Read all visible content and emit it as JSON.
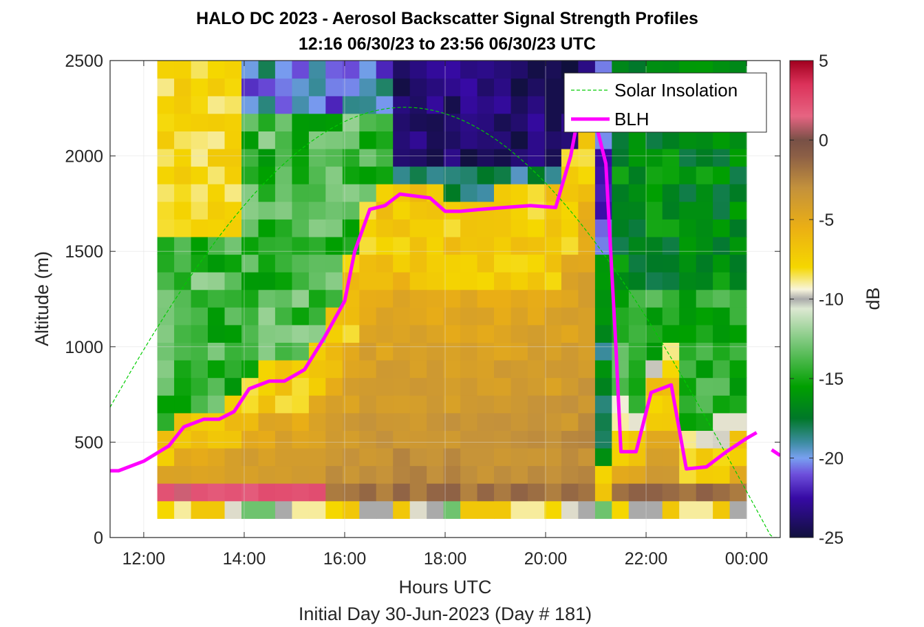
{
  "title_line1": "HALO DC 2023 - Aerosol Backscatter Signal Strength Profiles",
  "title_line2": "12:16 06/30/23 to 23:56 06/30/23  UTC",
  "xlabel": "Hours UTC",
  "xlabel2": "Initial Day 30-Jun-2023 (Day # 181)",
  "ylabel": "Altitude (m)",
  "colorbar_label": "dB",
  "legend": {
    "solar": "Solar Insolation",
    "blh": "BLH"
  },
  "colors": {
    "solar": "#00cc00",
    "blh": "#ff00ff"
  },
  "chart_data": {
    "type": "heatmap",
    "x_range_hours": [
      11.33,
      24.67
    ],
    "y_range_m": [
      0,
      2500
    ],
    "xticks": [
      {
        "value": 12,
        "label": "12:00"
      },
      {
        "value": 14,
        "label": "14:00"
      },
      {
        "value": 16,
        "label": "16:00"
      },
      {
        "value": 18,
        "label": "18:00"
      },
      {
        "value": 20,
        "label": "20:00"
      },
      {
        "value": 22,
        "label": "22:00"
      },
      {
        "value": 24,
        "label": "00:00"
      }
    ],
    "yticks": [
      {
        "value": 0,
        "label": "0"
      },
      {
        "value": 500,
        "label": "500"
      },
      {
        "value": 1000,
        "label": "1000"
      },
      {
        "value": 1500,
        "label": "1500"
      },
      {
        "value": 2000,
        "label": "2000"
      },
      {
        "value": 2500,
        "label": "2500"
      }
    ],
    "colorbar": {
      "range_db": [
        -25,
        5
      ],
      "ticks": [
        {
          "value": 5,
          "label": "5"
        },
        {
          "value": 0,
          "label": "0"
        },
        {
          "value": -5,
          "label": "-5"
        },
        {
          "value": -10,
          "label": "-10"
        },
        {
          "value": -15,
          "label": "-15"
        },
        {
          "value": -20,
          "label": "-20"
        },
        {
          "value": -25,
          "label": "-25"
        }
      ]
    },
    "grid": true,
    "legend_position": "top-right",
    "time_columns_start": 12.27,
    "time_columns_end": 24.0,
    "altitude_rows_bottom_m": 100,
    "altitude_rows_top_m": 2500,
    "blh_series": {
      "name": "BLH",
      "x": [
        11.33,
        11.5,
        12.0,
        12.5,
        12.8,
        13.2,
        13.5,
        13.8,
        14.1,
        14.5,
        14.8,
        15.2,
        15.6,
        16.0,
        16.2,
        16.5,
        16.8,
        17.1,
        17.4,
        17.7,
        18.0,
        18.3,
        18.7,
        19.2,
        19.7,
        20.2,
        20.5,
        20.7,
        20.9,
        21.0,
        21.2,
        21.4,
        21.5,
        21.8,
        22.1,
        22.5,
        22.8,
        23.2,
        23.6,
        24.0,
        24.2
      ],
      "y": [
        350,
        350,
        400,
        480,
        580,
        620,
        620,
        660,
        780,
        820,
        820,
        880,
        1050,
        1240,
        1500,
        1720,
        1740,
        1800,
        1790,
        1780,
        1710,
        1710,
        1720,
        1730,
        1740,
        1730,
        2000,
        2280,
        2300,
        2170,
        1960,
        1000,
        450,
        450,
        760,
        800,
        360,
        370,
        450,
        520,
        550
      ]
    },
    "blh_tail": {
      "x": [
        24.5,
        24.67
      ],
      "y": [
        460,
        430
      ]
    },
    "solar_series": {
      "name": "Solar Insolation",
      "peak_x": 17.2,
      "peak_y": 2255,
      "halfwidth_hours": 7.3
    }
  }
}
